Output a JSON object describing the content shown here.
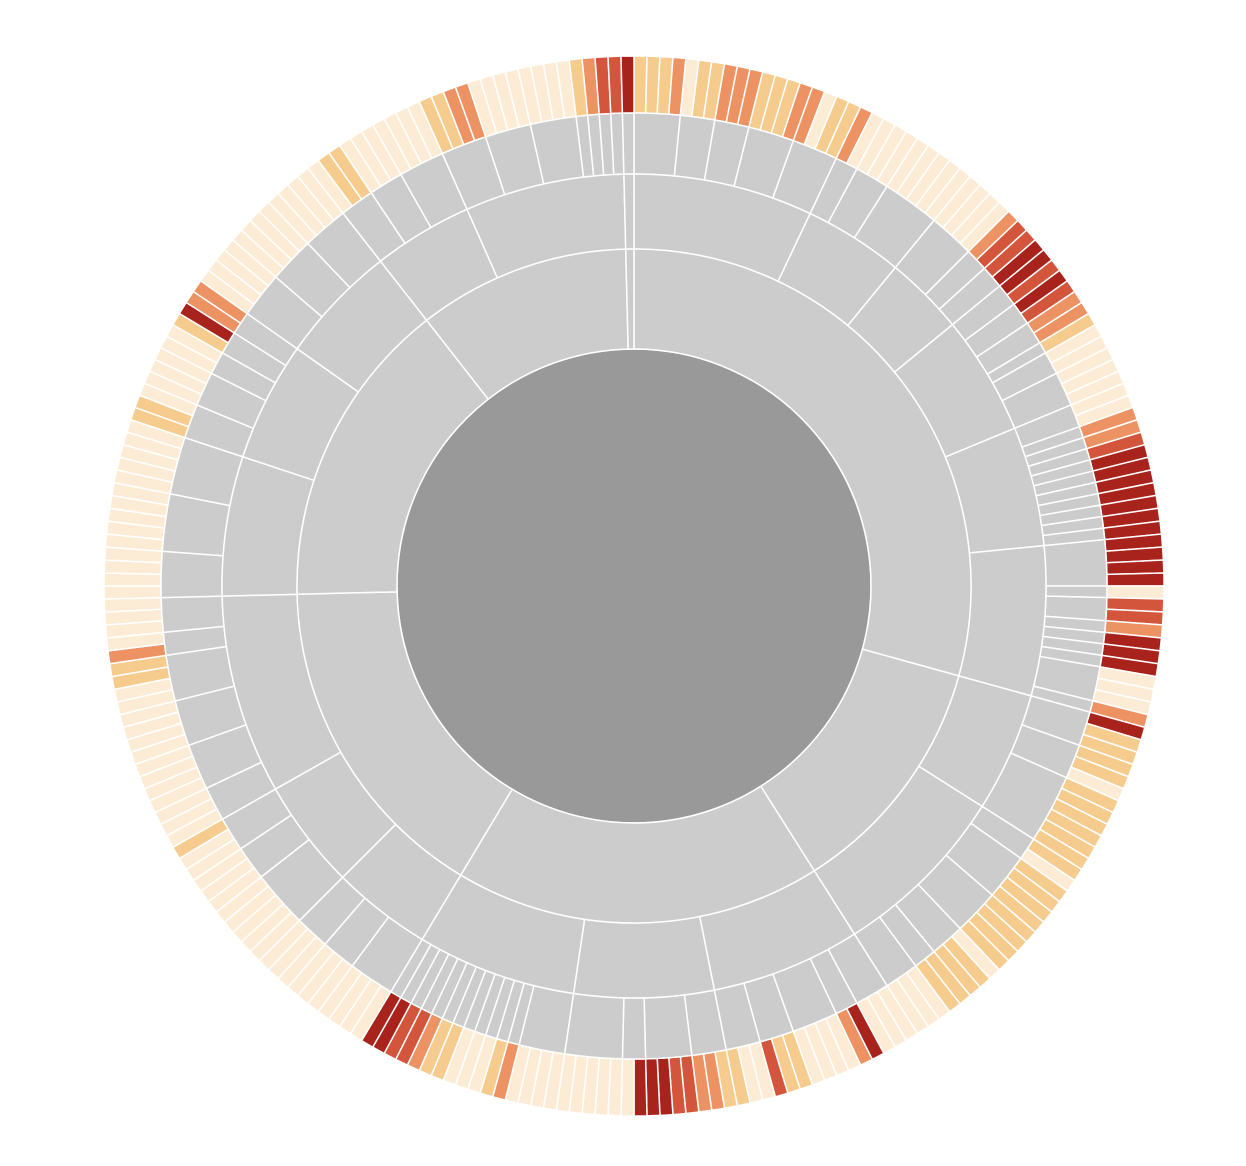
{
  "chart_data": {
    "type": "sunburst",
    "center_color": "#999999",
    "branch_color": "#cccccc",
    "colors": [
      "#fdecd5",
      "#f6cc8e",
      "#ec9263",
      "#d3553b",
      "#a8231b"
    ],
    "tree": [
      [
        [
          [
            1,
            1,
            1,
            2
          ],
          [
            0,
            1,
            1
          ],
          [
            2,
            2,
            2
          ],
          [
            1,
            1,
            1,
            2
          ],
          [
            2,
            0,
            1,
            1
          ]
        ],
        [
          [
            2,
            0
          ],
          [
            0,
            0,
            0
          ],
          [
            0,
            0,
            0,
            0,
            0
          ]
        ],
        [
          [
            0,
            0,
            0,
            0
          ],
          [
            2,
            3
          ],
          [
            3,
            4
          ]
        ],
        [
          [
            4,
            3
          ],
          [
            4,
            3
          ],
          [
            2,
            2
          ],
          [
            1
          ],
          [
            0,
            0
          ],
          [
            0,
            0,
            0
          ]
        ],
        [
          [
            0,
            0
          ],
          [
            2
          ],
          [
            2
          ],
          [
            3
          ],
          [
            4
          ],
          [
            4
          ],
          [
            4
          ],
          [
            4
          ],
          [
            4
          ],
          [
            4
          ],
          [
            4
          ]
        ],
        [
          [
            4,
            4,
            4,
            4
          ],
          [
            0
          ],
          [
            3,
            3
          ],
          [
            2
          ],
          [
            4
          ],
          [
            4
          ],
          [
            4
          ],
          [
            0,
            0,
            0
          ],
          [
            2
          ]
        ]
      ],
      [
        [
          [
            4,
            1,
            1
          ],
          [
            1,
            1,
            0
          ],
          [
            1,
            1,
            1,
            1,
            1,
            1
          ]
        ],
        [
          [
            1,
            0
          ],
          [
            1,
            1,
            1,
            1
          ],
          [
            1,
            1,
            1,
            1
          ],
          [
            0,
            1,
            1
          ],
          [
            1,
            1
          ],
          [
            0,
            0,
            0
          ]
        ]
      ],
      [
        [
          [
            0,
            0,
            0
          ],
          [
            4,
            2
          ],
          [
            0,
            0,
            0,
            0
          ],
          [
            1,
            1,
            3
          ],
          [
            0,
            0,
            1
          ]
        ],
        [
          [
            1,
            2,
            2
          ],
          [
            3,
            3,
            4,
            4
          ],
          [
            4,
            0
          ],
          [
            0,
            0,
            0,
            0,
            0
          ]
        ],
        [
          [
            0,
            0,
            0,
            0
          ],
          [
            2
          ],
          [
            1
          ],
          [
            0
          ],
          [
            0
          ],
          [
            0
          ],
          [
            1
          ],
          [
            1
          ],
          [
            2
          ],
          [
            3
          ],
          [
            3
          ],
          [
            4
          ],
          [
            4
          ]
        ]
      ],
      [
        [
          [
            0,
            0,
            0,
            0
          ],
          [
            0,
            0,
            0
          ],
          [
            0,
            0,
            0
          ]
        ],
        [
          [
            0,
            0,
            0,
            0,
            0
          ],
          [
            0,
            0,
            0
          ],
          [
            0,
            0,
            1
          ]
        ],
        [
          [
            0,
            0,
            0
          ],
          [
            0,
            0,
            0,
            0
          ],
          [
            0,
            0,
            0,
            0
          ],
          [
            0,
            0,
            1,
            1
          ],
          [
            2,
            0
          ],
          [
            0,
            0,
            0
          ]
        ]
      ],
      [
        [
          [
            0,
            0,
            0,
            0
          ],
          [
            0,
            0,
            0,
            0,
            0
          ],
          [
            0,
            0,
            0,
            0,
            0
          ]
        ],
        [
          [
            1,
            1,
            0
          ],
          [
            0,
            0,
            0
          ],
          [
            0,
            0
          ],
          [
            1,
            4
          ],
          [
            2,
            2
          ]
        ],
        [
          [
            0,
            0,
            0,
            0
          ],
          [
            0,
            0,
            0,
            0
          ],
          [
            0,
            0,
            0,
            0
          ]
        ]
      ],
      [
        [
          [
            0,
            1,
            1
          ],
          [
            0,
            0,
            0
          ],
          [
            0,
            0,
            0,
            0
          ]
        ],
        [
          [
            1,
            1,
            2,
            2
          ],
          [
            0,
            0,
            0,
            0
          ],
          [
            0,
            0,
            0,
            0
          ],
          [
            1
          ],
          [
            2
          ],
          [
            3
          ],
          [
            3
          ]
        ]
      ],
      [
        [
          [
            4
          ]
        ]
      ]
    ]
  }
}
